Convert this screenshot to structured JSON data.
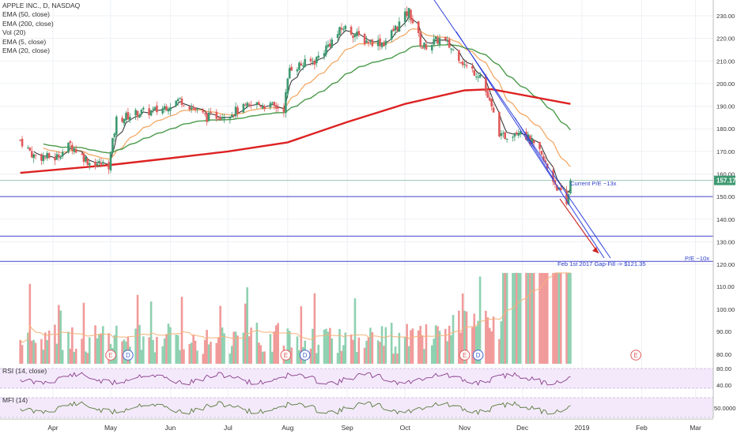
{
  "legend": {
    "symbol": "APPLE INC., D, NASDAQ",
    "indicators": [
      "EMA (50, close)",
      "EMA (200, close)",
      "Vol (20)",
      "EMA (5, close)",
      "EMA (20, close)"
    ]
  },
  "colors": {
    "up": "#3d9970",
    "down": "#e05a5a",
    "ema5": "#2b2b2b",
    "ema20": "#f2a35c",
    "ema50": "#4a9a4a",
    "ema200": "#dd2222",
    "level": "#4444cc",
    "trend": "#3344dd",
    "arrow": "#cc2222",
    "price_badge": "#3d9970",
    "panel_fill": "#f3e9fb",
    "rsi_line": "#8a3d8a",
    "mfi_line": "#5a7a3a"
  },
  "chart_data": {
    "type": "candlestick",
    "y_ticks": [
      230,
      220,
      210,
      200,
      190,
      180,
      170,
      160,
      150,
      140,
      130,
      120
    ],
    "x_labels": [
      "Apr",
      "May",
      "Jun",
      "Jul",
      "Aug",
      "Sep",
      "Oct",
      "Nov",
      "Dec",
      "2019",
      "Feb",
      "Mar"
    ],
    "last_price": "157.17",
    "last_price_value": 157.17,
    "horizontal_levels": [
      157.17,
      150.0,
      132.5,
      121.35
    ],
    "price_waypoints": [
      {
        "date": "2018-03-15",
        "close": 175
      },
      {
        "date": "2018-03-22",
        "close": 168
      },
      {
        "date": "2018-04-02",
        "close": 167
      },
      {
        "date": "2018-04-10",
        "close": 173
      },
      {
        "date": "2018-04-20",
        "close": 165
      },
      {
        "date": "2018-04-30",
        "close": 164
      },
      {
        "date": "2018-05-04",
        "close": 184
      },
      {
        "date": "2018-05-15",
        "close": 187
      },
      {
        "date": "2018-05-25",
        "close": 188
      },
      {
        "date": "2018-06-06",
        "close": 193
      },
      {
        "date": "2018-06-20",
        "close": 185
      },
      {
        "date": "2018-07-02",
        "close": 187
      },
      {
        "date": "2018-07-16",
        "close": 191
      },
      {
        "date": "2018-07-30",
        "close": 189
      },
      {
        "date": "2018-08-02",
        "close": 207
      },
      {
        "date": "2018-08-15",
        "close": 210
      },
      {
        "date": "2018-08-30",
        "close": 225
      },
      {
        "date": "2018-09-10",
        "close": 219
      },
      {
        "date": "2018-09-20",
        "close": 218
      },
      {
        "date": "2018-10-03",
        "close": 232
      },
      {
        "date": "2018-10-10",
        "close": 216
      },
      {
        "date": "2018-10-20",
        "close": 220
      },
      {
        "date": "2018-10-29",
        "close": 212
      },
      {
        "date": "2018-11-02",
        "close": 207
      },
      {
        "date": "2018-11-09",
        "close": 204
      },
      {
        "date": "2018-11-20",
        "close": 176
      },
      {
        "date": "2018-11-30",
        "close": 180
      },
      {
        "date": "2018-12-10",
        "close": 169
      },
      {
        "date": "2018-12-24",
        "close": 146
      },
      {
        "date": "2018-12-26",
        "close": 157.17
      }
    ],
    "ema200_waypoints": [
      {
        "date": "2018-03-15",
        "value": 160.5
      },
      {
        "date": "2018-05-01",
        "value": 164
      },
      {
        "date": "2018-06-01",
        "value": 167
      },
      {
        "date": "2018-07-01",
        "value": 170
      },
      {
        "date": "2018-08-01",
        "value": 174
      },
      {
        "date": "2018-09-01",
        "value": 183
      },
      {
        "date": "2018-10-01",
        "value": 191
      },
      {
        "date": "2018-11-01",
        "value": 197
      },
      {
        "date": "2018-11-15",
        "value": 197.5
      },
      {
        "date": "2018-12-26",
        "value": 191
      }
    ],
    "event_markers": [
      {
        "label": "E",
        "date": "2018-05-01"
      },
      {
        "label": "D",
        "date": "2018-05-10"
      },
      {
        "label": "E",
        "date": "2018-07-31"
      },
      {
        "label": "D",
        "date": "2018-08-10"
      },
      {
        "label": "E",
        "date": "2018-11-01"
      },
      {
        "label": "D",
        "date": "2018-11-08"
      },
      {
        "label": "E",
        "date": "2019-01-29"
      }
    ],
    "annotations": [
      {
        "text": "Current P/E ~13x"
      },
      {
        "text": "Feb 1st 2017 Gap-Fill -> $121.35"
      },
      {
        "text": "P/E ~10x"
      }
    ],
    "volume_ticks": [
      "110.00",
      "100.00",
      "90.00",
      "80.00"
    ],
    "rsi": {
      "label": "RSI (14, close)",
      "ticks": [
        "80.00",
        "40.00"
      ]
    },
    "mfi": {
      "label": "MFI (14)",
      "ticks": [
        "50.0000"
      ]
    }
  }
}
